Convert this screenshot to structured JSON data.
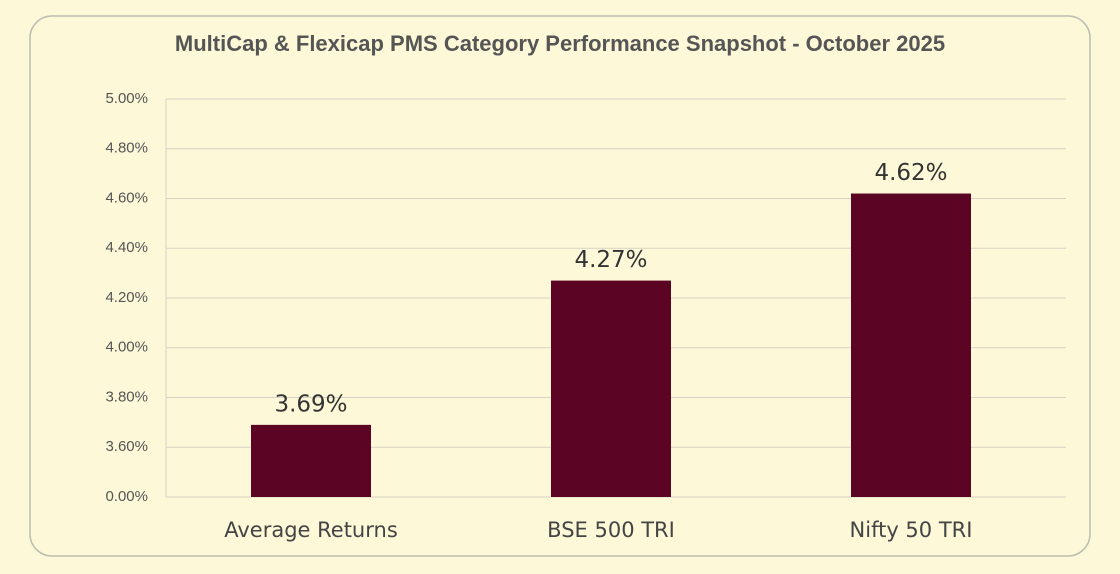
{
  "chart_data": {
    "type": "bar",
    "title": "MultiCap & Flexicap PMS Category Performance Snapshot - October 2025",
    "categories": [
      "Average Returns",
      "BSE 500 TRI",
      "Nifty 50 TRI"
    ],
    "values": [
      3.69,
      4.27,
      4.62
    ],
    "value_labels": [
      "3.69%",
      "4.27%",
      "4.62%"
    ],
    "color": "#5c0424",
    "ylim": [
      0,
      5
    ],
    "yticks": [
      {
        "value": 0,
        "label": "0.00%"
      },
      {
        "value": 3.6,
        "label": "3.60%"
      },
      {
        "value": 3.8,
        "label": "3.80%"
      },
      {
        "value": 4.0,
        "label": "4.00%"
      },
      {
        "value": 4.2,
        "label": "4.20%"
      },
      {
        "value": 4.4,
        "label": "4.40%"
      },
      {
        "value": 4.6,
        "label": "4.60%"
      },
      {
        "value": 4.8,
        "label": "4.80%"
      },
      {
        "value": 5.0,
        "label": "5.00%"
      }
    ],
    "axis_break": true,
    "grid": true
  }
}
